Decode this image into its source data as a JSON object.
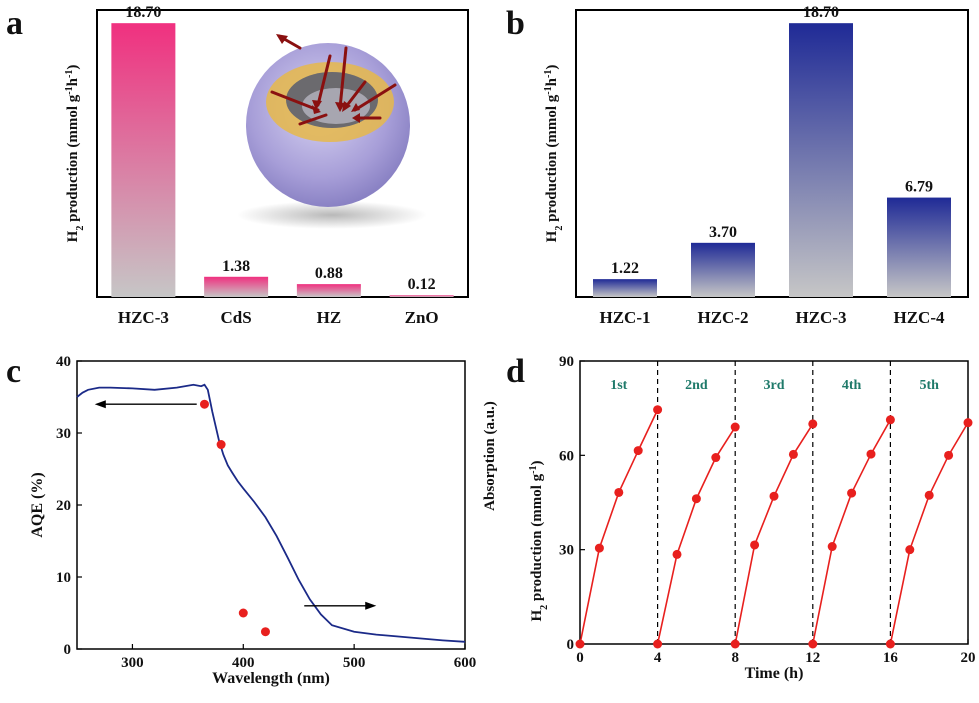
{
  "colors": {
    "pink": "#f0307f",
    "navy": "#1f2a96",
    "bar_bottom": "#c6c6c6",
    "aqe_curve": "#1b2a88",
    "red_marker": "#e8201e",
    "cycle_label": "#1f7a6a"
  },
  "chart_data": [
    {
      "panel": "a",
      "type": "bar",
      "categories": [
        "HZC-3",
        "CdS",
        "HZ",
        "ZnO"
      ],
      "values": [
        18.7,
        1.38,
        0.88,
        0.12
      ],
      "value_labels": [
        "18.70",
        "1.38",
        "0.88",
        "0.12"
      ],
      "ylabel_main": "H",
      "ylabel_sub": "2",
      "ylabel_rest": " production (mmol g",
      "ylabel_sup1": "-1",
      "ylabel_mid": "h",
      "ylabel_sup2": "-1",
      "ylabel_end": ")",
      "ylim": [
        0,
        19.6
      ],
      "inset": "hollow-sphere-illustration",
      "gradient": [
        "pink",
        "gray"
      ]
    },
    {
      "panel": "b",
      "type": "bar",
      "categories": [
        "HZC-1",
        "HZC-2",
        "HZC-3",
        "HZC-4"
      ],
      "values": [
        1.22,
        3.7,
        18.7,
        6.79
      ],
      "value_labels": [
        "1.22",
        "3.70",
        "18.70",
        "6.79"
      ],
      "ylabel_main": "H",
      "ylabel_sub": "2",
      "ylabel_rest": " production (mmol g",
      "ylabel_sup1": "-1",
      "ylabel_mid": "h",
      "ylabel_sup2": "-1",
      "ylabel_end": ")",
      "ylim": [
        0,
        19.6
      ],
      "gradient": [
        "navy",
        "gray"
      ]
    },
    {
      "panel": "c",
      "type": "line",
      "xlabel": "Wavelength (nm)",
      "ylabel": "AQE (%)",
      "xlim": [
        250,
        600
      ],
      "ylim": [
        0,
        40
      ],
      "xticks": [
        300,
        400,
        500,
        600
      ],
      "yticks": [
        0,
        10,
        20,
        30,
        40
      ],
      "absorption_curve": {
        "x": [
          250,
          255,
          260,
          270,
          280,
          300,
          320,
          340,
          355,
          362,
          365,
          368,
          370,
          372,
          375,
          378,
          382,
          386,
          390,
          395,
          400,
          410,
          420,
          430,
          440,
          450,
          460,
          470,
          480,
          500,
          520,
          550,
          580,
          600
        ],
        "y": [
          35.0,
          35.6,
          36.0,
          36.3,
          36.3,
          36.2,
          36.0,
          36.3,
          36.7,
          36.5,
          36.7,
          36.0,
          34.5,
          33.0,
          31.0,
          29.0,
          27.0,
          25.5,
          24.5,
          23.3,
          22.3,
          20.4,
          18.3,
          15.7,
          12.7,
          9.6,
          6.9,
          4.8,
          3.3,
          2.4,
          2.0,
          1.6,
          1.2,
          1.0
        ]
      },
      "aqe_points": {
        "x": [
          365,
          380,
          400,
          420
        ],
        "y": [
          34.0,
          28.4,
          5.0,
          2.4
        ]
      }
    },
    {
      "panel": "d",
      "type": "line",
      "xlabel": "Time (h)",
      "ylabel_left_main": "H",
      "ylabel_left_sub": "2",
      "ylabel_left_rest": " production (mmol g",
      "ylabel_left_sup": "-1",
      "ylabel_left_end": ")",
      "ylabel_right": "Absorption (a.u.)",
      "xlim": [
        0,
        20
      ],
      "ylim": [
        0,
        90
      ],
      "xticks": [
        0,
        4,
        8,
        12,
        16,
        20
      ],
      "yticks": [
        0,
        30,
        60,
        90
      ],
      "divider_x": [
        4,
        8,
        12,
        16
      ],
      "cycle_labels": [
        "1st",
        "2nd",
        "3rd",
        "4th",
        "5th"
      ],
      "series": [
        {
          "x": [
            0,
            1,
            2,
            3,
            4
          ],
          "y": [
            0,
            30.5,
            48.2,
            61.5,
            74.5
          ]
        },
        {
          "x": [
            4,
            5,
            6,
            7,
            8
          ],
          "y": [
            0,
            28.5,
            46.2,
            59.3,
            69.0
          ]
        },
        {
          "x": [
            8,
            9,
            10,
            11,
            12
          ],
          "y": [
            0,
            31.5,
            47.0,
            60.3,
            70.0
          ]
        },
        {
          "x": [
            12,
            13,
            14,
            15,
            16
          ],
          "y": [
            0,
            31.0,
            48.0,
            60.4,
            71.3
          ]
        },
        {
          "x": [
            16,
            17,
            18,
            19,
            20
          ],
          "y": [
            0,
            30.0,
            47.3,
            60.0,
            70.4
          ]
        }
      ]
    }
  ]
}
